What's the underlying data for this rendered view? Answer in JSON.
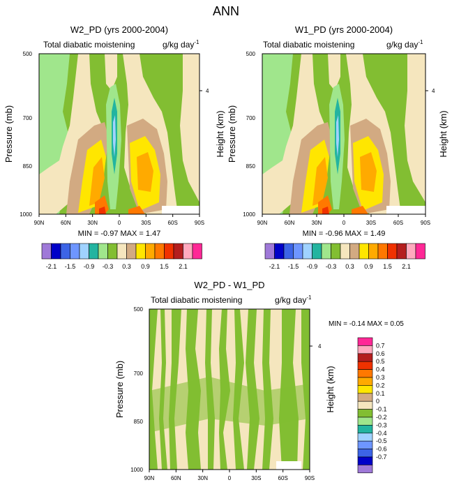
{
  "figure": {
    "title": "ANN"
  },
  "colors": {
    "contour_palette": [
      "#9f79d8",
      "#0000c8",
      "#3c64e6",
      "#6e96ff",
      "#a0d2ff",
      "#23b4a0",
      "#a0e68c",
      "#82be32",
      "#f5e6be",
      "#d2aa82",
      "#ffe600",
      "#ffaa00",
      "#ff7800",
      "#f03200",
      "#b41e1e",
      "#ffaabe",
      "#ff2896"
    ],
    "diff_palette": [
      "#9f79d8",
      "#0000c8",
      "#3c64e6",
      "#6e96ff",
      "#a0d2ff",
      "#23b4a0",
      "#a0e68c",
      "#82be32",
      "#f5e6be",
      "#d2aa82",
      "#ffe600",
      "#ffaa00",
      "#ff7800",
      "#f03200",
      "#b41e1e",
      "#ffaabe",
      "#ff2896"
    ]
  },
  "chart_data": [
    {
      "type": "heatmap",
      "title": "W2_PD (yrs 2000-2004)",
      "subtitle_left": "Total diabatic moistening",
      "units": "g/kg day",
      "units_exp": "-1",
      "xlabel": "",
      "ylabel": "Pressure (mb)",
      "ylabel_right": "Height (km)",
      "x_ticks": [
        "90N",
        "60N",
        "30N",
        "0",
        "30S",
        "60S",
        "90S"
      ],
      "y_ticks": [
        "500",
        "700",
        "850",
        "1000"
      ],
      "y_right_ticks": [
        "4"
      ],
      "stats": {
        "min_label": "MIN =",
        "min": "-0.97",
        "max_label": "MAX =",
        "max": "1.47"
      },
      "colorbar_labels": [
        "-2.1",
        "-1.5",
        "-0.9",
        "-0.3",
        "0.3",
        "0.9",
        "1.5",
        "2.1"
      ]
    },
    {
      "type": "heatmap",
      "title": "W1_PD (yrs 2000-2004)",
      "subtitle_left": "Total diabatic moistening",
      "units": "g/kg day",
      "units_exp": "-1",
      "xlabel": "",
      "ylabel": "Pressure (mb)",
      "ylabel_right": "Height (km)",
      "x_ticks": [
        "90N",
        "60N",
        "30N",
        "0",
        "30S",
        "60S",
        "90S"
      ],
      "y_ticks": [
        "500",
        "700",
        "850",
        "1000"
      ],
      "y_right_ticks": [
        "4"
      ],
      "stats": {
        "min_label": "MIN =",
        "min": "-0.96",
        "max_label": "MAX =",
        "max": "1.49"
      },
      "colorbar_labels": [
        "-2.1",
        "-1.5",
        "-0.9",
        "-0.3",
        "0.3",
        "0.9",
        "1.5",
        "2.1"
      ]
    },
    {
      "type": "heatmap",
      "title": "W2_PD - W1_PD",
      "subtitle_left": "Total diabatic moistening",
      "units": "g/kg day",
      "units_exp": "-1",
      "xlabel": "",
      "ylabel": "Pressure (mb)",
      "ylabel_right": "Height (km)",
      "x_ticks": [
        "90N",
        "60N",
        "30N",
        "0",
        "30S",
        "60S",
        "90S"
      ],
      "y_ticks": [
        "500",
        "700",
        "850",
        "1000"
      ],
      "y_right_ticks": [
        "4"
      ],
      "stats": {
        "min_label": "MIN =",
        "min": "-0.14",
        "max_label": "MAX =",
        "max": "0.05"
      },
      "colorbar_labels": [
        "0.7",
        "0.6",
        "0.5",
        "0.4",
        "0.3",
        "0.2",
        "0.1",
        "0",
        "-0.1",
        "-0.2",
        "-0.3",
        "-0.4",
        "-0.5",
        "-0.6",
        "-0.7"
      ]
    }
  ]
}
